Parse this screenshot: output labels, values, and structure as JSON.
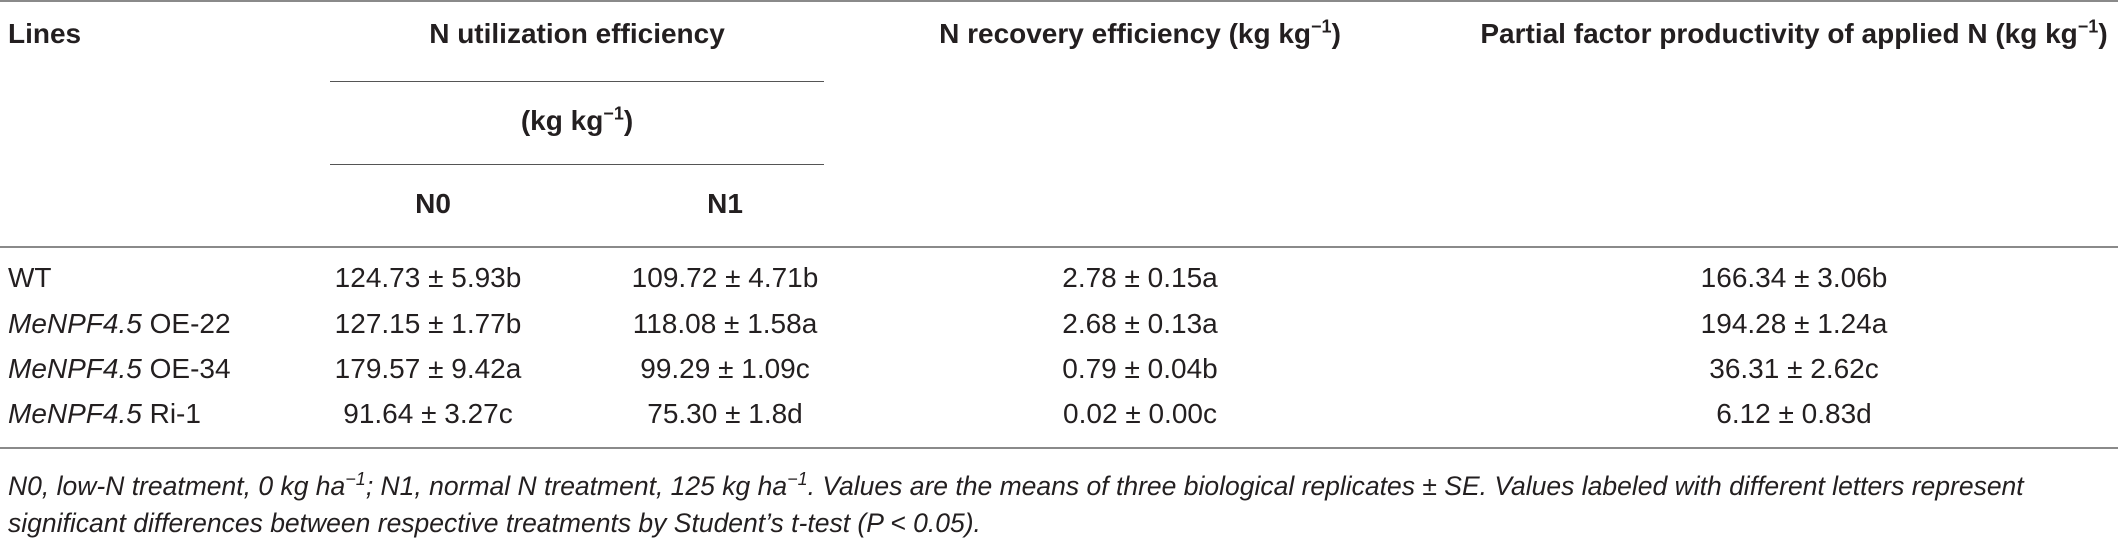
{
  "table": {
    "header": {
      "lines": "Lines",
      "nue_title": "N utilization efficiency",
      "nue_unit": "(kg kg",
      "nue_unit_sup": "−1",
      "nue_unit_close": ")",
      "sub_n0": "N0",
      "sub_n1": "N1",
      "nre": "N recovery efficiency (kg kg",
      "nre_sup": "−1",
      "nre_close": ")",
      "pfp": "Partial factor productivity of applied N (kg kg",
      "pfp_sup": "−1",
      "pfp_close": ")"
    },
    "rows": [
      {
        "line_italic": "",
        "line_rest": "WT",
        "n0": "124.73 ± 5.93b",
        "n1": "109.72 ± 4.71b",
        "nre": "2.78 ± 0.15a",
        "pfp": "166.34 ± 3.06b"
      },
      {
        "line_italic": "MeNPF4.5",
        "line_rest": " OE-22",
        "n0": "127.15 ± 1.77b",
        "n1": "118.08 ± 1.58a",
        "nre": "2.68 ± 0.13a",
        "pfp": "194.28 ± 1.24a"
      },
      {
        "line_italic": "MeNPF4.5",
        "line_rest": " OE-34",
        "n0": "179.57 ± 9.42a",
        "n1": "99.29 ± 1.09c",
        "nre": "0.79 ± 0.04b",
        "pfp": "36.31 ± 2.62c"
      },
      {
        "line_italic": "MeNPF4.5",
        "line_rest": " Ri-1",
        "n0": "91.64 ± 3.27c",
        "n1": "75.30 ± 1.8d",
        "nre": "0.02 ± 0.00c",
        "pfp": "6.12 ± 0.83d"
      }
    ],
    "footnote": {
      "part1": "N0, low-N treatment, 0 kg ha",
      "sup1": "−1",
      "part2": "; N1, normal N treatment, 125 kg ha",
      "sup2": "−1",
      "part3": ". Values are the means of three biological replicates ± SE. Values labeled with different letters represent significant differences between respective treatments by Student’s t-test (P < 0.05)."
    }
  }
}
